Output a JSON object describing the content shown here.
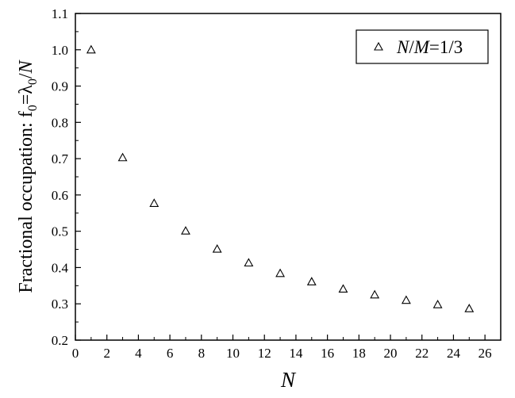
{
  "chart_data": {
    "type": "scatter",
    "xlabel": "N",
    "ylabel": {
      "prefix": "Fractional occupation: f",
      "sub1": "0",
      "mid": "=λ",
      "sub2": "0",
      "slash": "/",
      "italic": "N"
    },
    "xlim": [
      0,
      27
    ],
    "ylim": [
      0.2,
      1.1
    ],
    "xticks": [
      0,
      2,
      4,
      6,
      8,
      10,
      12,
      14,
      16,
      18,
      20,
      22,
      24,
      26
    ],
    "yticks": [
      0.2,
      0.3,
      0.4,
      0.5,
      0.6,
      0.7,
      0.8,
      0.9,
      1.0,
      1.1
    ],
    "xtick_labels": [
      "0",
      "2",
      "4",
      "6",
      "8",
      "10",
      "12",
      "14",
      "16",
      "18",
      "20",
      "22",
      "24",
      "26"
    ],
    "ytick_labels": [
      "0.2",
      "0.3",
      "0.4",
      "0.5",
      "0.6",
      "0.7",
      "0.8",
      "0.9",
      "1.0",
      "1.1"
    ],
    "grid": false,
    "legend_position": "top-right",
    "series": [
      {
        "name": "N/M=1/3",
        "legend_parts": {
          "a": "N",
          "b": "/",
          "c": "M",
          "d": "=1/3"
        },
        "marker": "open-triangle",
        "color": "#000000",
        "x": [
          1,
          3,
          5,
          7,
          9,
          11,
          13,
          15,
          17,
          19,
          21,
          23,
          25
        ],
        "y": [
          1.0,
          0.703,
          0.577,
          0.501,
          0.451,
          0.413,
          0.384,
          0.361,
          0.341,
          0.325,
          0.31,
          0.298,
          0.287
        ]
      }
    ]
  }
}
